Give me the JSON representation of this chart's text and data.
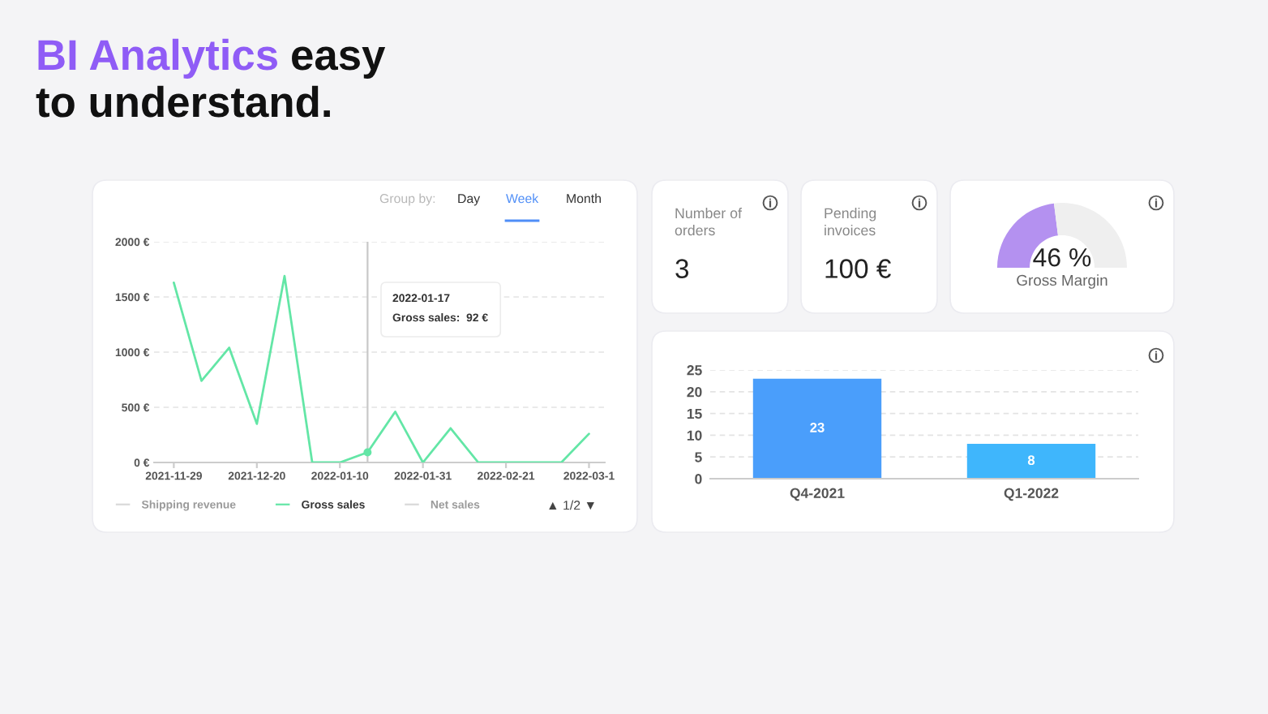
{
  "chart_data": [
    {
      "type": "other",
      "title": "BI Analytics easy to understand."
    },
    {
      "type": "line",
      "x": [
        "2021-11-29",
        "2021-12-06",
        "2021-12-13",
        "2021-12-20",
        "2021-12-27",
        "2022-01-03",
        "2022-01-10",
        "2022-01-17",
        "2022-01-24",
        "2022-01-31",
        "2022-02-07",
        "2022-02-14",
        "2022-02-21",
        "2022-02-28",
        "2022-03-07",
        "2022-03-14"
      ],
      "series": [
        {
          "name": "Shipping revenue",
          "color": "#d9d9d9",
          "values": [
            null,
            null,
            null,
            null,
            null,
            null,
            null,
            null,
            null,
            null,
            null,
            null,
            null,
            null,
            null,
            null
          ]
        },
        {
          "name": "Gross sales",
          "color": "#63e6a6",
          "values": [
            1630,
            740,
            1040,
            350,
            1690,
            0,
            0,
            92,
            460,
            0,
            310,
            0,
            0,
            0,
            0,
            260
          ]
        },
        {
          "name": "Net sales",
          "color": "#d9d9d9",
          "values": [
            null,
            null,
            null,
            null,
            null,
            null,
            null,
            null,
            null,
            null,
            null,
            null,
            null,
            null,
            null,
            null
          ]
        }
      ],
      "xlim": [
        "2021-11-24",
        "2022-03-18"
      ],
      "xticks": [
        "2021-11-29",
        "2021-12-20",
        "2022-01-10",
        "2022-01-31",
        "2022-02-21",
        {
          "value": "2022-03-14",
          "label": "2022-03-1"
        }
      ],
      "ylim": [
        0,
        2000
      ],
      "yticks": [
        {
          "value": 0,
          "label": "0 €"
        },
        {
          "value": 500,
          "label": "500 €"
        },
        {
          "value": 1000,
          "label": "1000 €"
        },
        {
          "value": 1500,
          "label": "1500 €"
        },
        {
          "value": 2000,
          "label": "2000 €"
        }
      ],
      "grid": "y",
      "legend": "bottom",
      "ref_lines": [
        {
          "axis": "x",
          "value": "2022-01-17",
          "color": "#c8c8c8"
        }
      ],
      "annotations": [
        "Group by:",
        "Day",
        "Week",
        "Month",
        "2022-01-17\nGross sales:  92 €",
        "▲ 1/2 ▼"
      ]
    },
    {
      "type": "other",
      "title": "Number of\norders",
      "annotations": [
        "3"
      ]
    },
    {
      "type": "other",
      "title": "Pending\ninvoices",
      "annotations": [
        "100 €"
      ]
    },
    {
      "type": "donut",
      "categories": [
        "Gross Margin",
        null
      ],
      "values": [
        46,
        54
      ],
      "colors": [
        "#b491f0",
        "#efefef"
      ],
      "value_labels": [
        "46 %",
        null
      ]
    },
    {
      "type": "bar",
      "categories": [
        "Q4-2021",
        "Q1-2022"
      ],
      "values": [
        23,
        8
      ],
      "colors": [
        "#4a9efb",
        "#3fb6fc"
      ],
      "ylim": [
        0,
        25
      ],
      "yticks": [
        0,
        5,
        10,
        15,
        20,
        25
      ],
      "grid": "y",
      "data_labels": true
    }
  ]
}
